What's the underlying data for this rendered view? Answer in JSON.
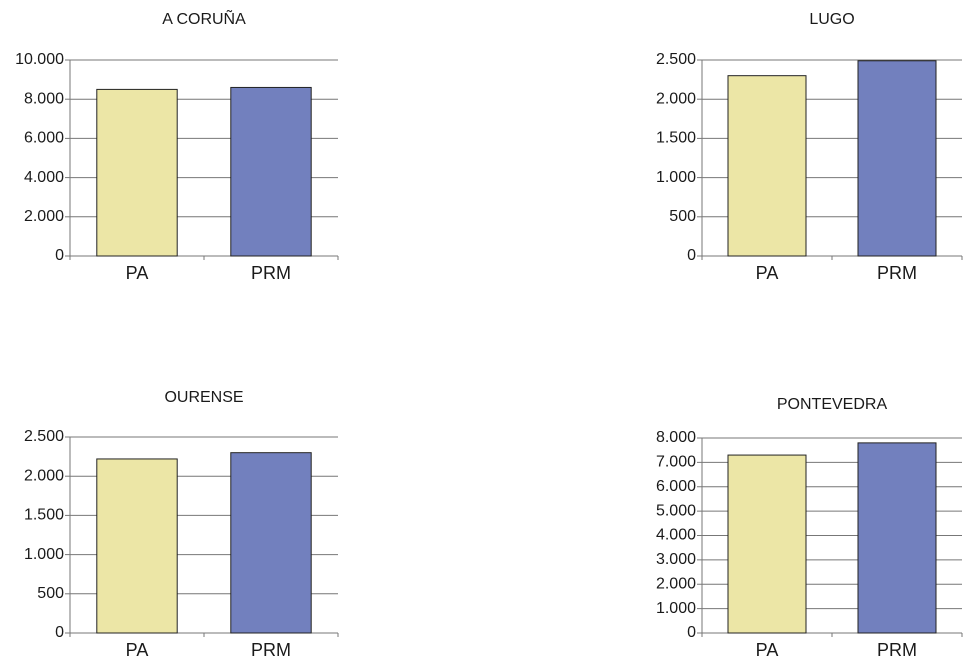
{
  "chart_data": [
    {
      "type": "bar",
      "title": "A CORUÑA",
      "categories": [
        "PA",
        "PRM"
      ],
      "values": [
        8500,
        8600
      ],
      "colors": [
        "#ece6a6",
        "#7280be"
      ],
      "ylim": [
        0,
        10000
      ],
      "yticks": [
        0,
        {
          "value": 2000,
          "label": "2.000"
        },
        {
          "value": 4000,
          "label": "4.000"
        },
        {
          "value": 6000,
          "label": "6.000"
        },
        {
          "value": 8000,
          "label": "8.000"
        },
        {
          "value": 10000,
          "label": "10.000"
        }
      ],
      "grid": true
    },
    {
      "type": "bar",
      "title": "LUGO",
      "categories": [
        "PA",
        "PRM"
      ],
      "values": [
        2300,
        2490
      ],
      "colors": [
        "#ece6a6",
        "#7280be"
      ],
      "ylim": [
        0,
        2500
      ],
      "yticks": [
        0,
        500,
        {
          "value": 1000,
          "label": "1.000"
        },
        {
          "value": 1500,
          "label": "1.500"
        },
        {
          "value": 2000,
          "label": "2.000"
        },
        {
          "value": 2500,
          "label": "2.500"
        }
      ],
      "grid": true
    },
    {
      "type": "bar",
      "title": "OURENSE",
      "categories": [
        "PA",
        "PRM"
      ],
      "values": [
        2220,
        2300
      ],
      "colors": [
        "#ece6a6",
        "#7280be"
      ],
      "ylim": [
        0,
        2500
      ],
      "yticks": [
        0,
        500,
        {
          "value": 1000,
          "label": "1.000"
        },
        {
          "value": 1500,
          "label": "1.500"
        },
        {
          "value": 2000,
          "label": "2.000"
        },
        {
          "value": 2500,
          "label": "2.500"
        }
      ],
      "grid": true
    },
    {
      "type": "bar",
      "title": "PONTEVEDRA",
      "categories": [
        "PA",
        "PRM"
      ],
      "values": [
        7300,
        7800
      ],
      "colors": [
        "#ece6a6",
        "#7280be"
      ],
      "ylim": [
        0,
        8000
      ],
      "yticks": [
        0,
        {
          "value": 1000,
          "label": "1.000"
        },
        {
          "value": 2000,
          "label": "2.000"
        },
        {
          "value": 3000,
          "label": "3.000"
        },
        {
          "value": 4000,
          "label": "4.000"
        },
        {
          "value": 5000,
          "label": "5.000"
        },
        {
          "value": 6000,
          "label": "6.000"
        },
        {
          "value": 7000,
          "label": "7.000"
        },
        {
          "value": 8000,
          "label": "8.000"
        }
      ],
      "grid": true
    }
  ]
}
